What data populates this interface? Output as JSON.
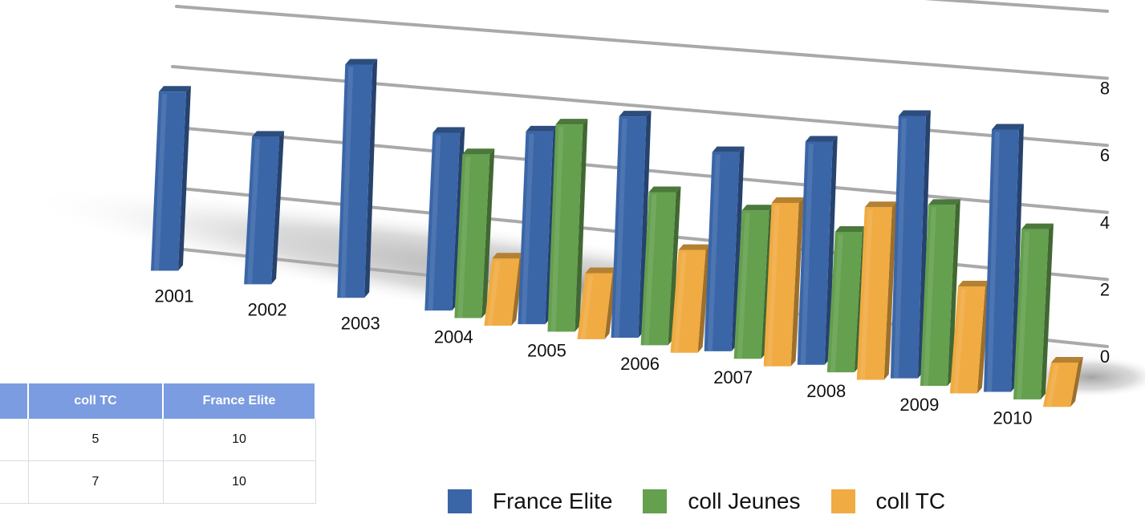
{
  "chart_data": {
    "type": "bar",
    "title": "",
    "xlabel": "",
    "ylabel": "",
    "categories": [
      "2001",
      "2002",
      "2003",
      "2004",
      "2005",
      "2006",
      "2007",
      "2008",
      "2009",
      "2010"
    ],
    "series": [
      {
        "name": "France Elite",
        "color": "#3a66a8",
        "values": [
          7.6,
          6.1,
          9.4,
          7.0,
          7.4,
          8.3,
          7.3,
          8.0,
          9.2,
          9.0
        ]
      },
      {
        "name": "coll Jeunes",
        "color": "#64a04e",
        "values": [
          null,
          null,
          null,
          6.4,
          7.9,
          5.7,
          5.4,
          5.0,
          6.3,
          5.8
        ]
      },
      {
        "name": "coll TC",
        "color": "#f0ab42",
        "values": [
          null,
          null,
          null,
          2.6,
          2.5,
          3.8,
          5.9,
          6.1,
          3.7,
          1.5
        ]
      }
    ],
    "yticks": [
      0,
      2,
      4,
      6,
      8
    ],
    "ylim": [
      0,
      10
    ],
    "grid": true,
    "legend": "bottom"
  },
  "table": {
    "headers": [
      "coll TC",
      "France Elite"
    ],
    "rows": [
      [
        "5",
        "10"
      ],
      [
        "7",
        "10"
      ]
    ]
  }
}
